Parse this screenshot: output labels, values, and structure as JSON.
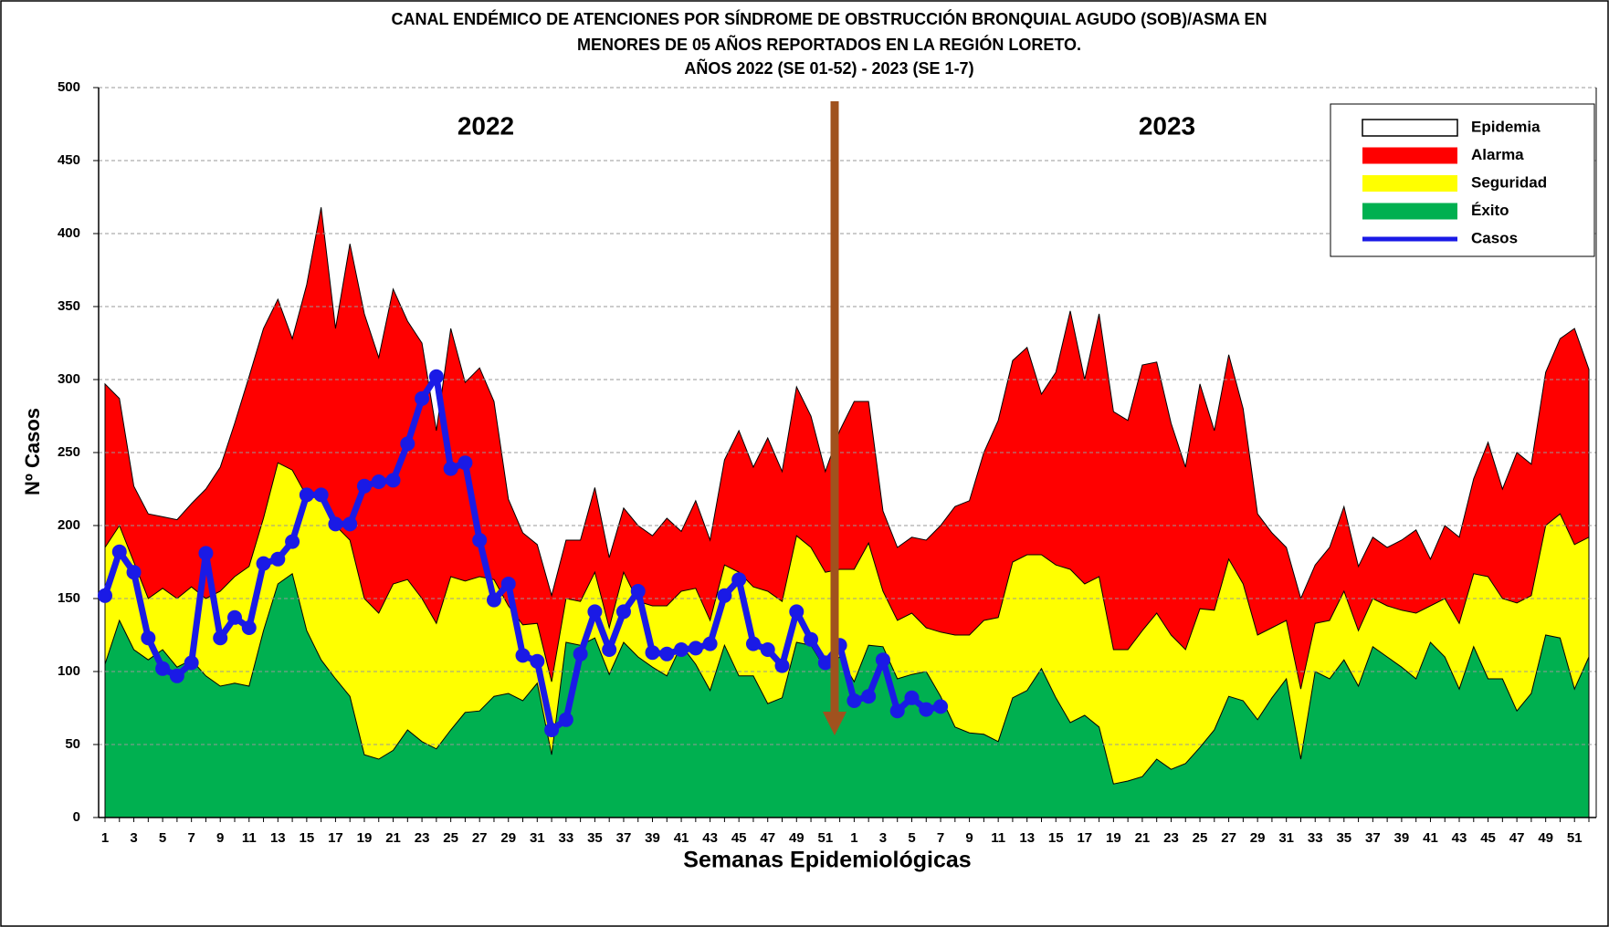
{
  "chart_data": {
    "type": "area",
    "title": [
      "CANAL ENDÉMICO DE ATENCIONES POR SÍNDROME DE OBSTRUCCIÓN BRONQUIAL AGUDO (SOB)/ASMA EN",
      "MENORES DE 05 AÑOS REPORTADOS EN LA REGIÓN LORETO.",
      "AÑOS 2022  (SE 01-52) - 2023 (SE   1-7)"
    ],
    "y_label": "Nº Casos",
    "x_label": "Semanas Epidemiológicas",
    "annotations": [
      "2022",
      "2023"
    ],
    "categories": [
      "1",
      null,
      "3",
      null,
      "5",
      null,
      "7",
      null,
      "9",
      null,
      "11",
      null,
      "13",
      null,
      "15",
      null,
      "17",
      null,
      "19",
      null,
      "21",
      null,
      "23",
      null,
      "25",
      null,
      "27",
      null,
      "29",
      null,
      "31",
      null,
      "33",
      null,
      "35",
      null,
      "37",
      null,
      "39",
      null,
      "41",
      null,
      "43",
      null,
      "45",
      null,
      "47",
      null,
      "49",
      null,
      "51",
      null,
      "1",
      null,
      "3",
      null,
      "5",
      null,
      "7",
      null,
      "9",
      null,
      "11",
      null,
      "13",
      null,
      "15",
      null,
      "17",
      null,
      "19",
      null,
      "21",
      null,
      "23",
      null,
      "25",
      null,
      "27",
      null,
      "29",
      null,
      "31",
      null,
      "33",
      null,
      "35",
      null,
      "37",
      null,
      "39",
      null,
      "41",
      null,
      "43",
      null,
      "45",
      null,
      "47",
      null,
      "49",
      null,
      "51",
      null
    ],
    "ylim": [
      0,
      500
    ],
    "yticks": [
      0,
      50,
      100,
      150,
      200,
      250,
      300,
      350,
      400,
      450,
      500
    ],
    "grid": true,
    "legend": "top-right",
    "series": [
      {
        "name": "Epidemia",
        "color": "#ffffff"
      },
      {
        "name": "Alarma",
        "color": "#ff0000",
        "type": "area",
        "values": [
          297,
          287,
          227,
          208,
          206,
          204,
          215,
          225,
          240,
          270,
          302,
          335,
          355,
          328,
          365,
          418,
          335,
          393,
          345,
          315,
          362,
          340,
          325,
          265,
          335,
          298,
          308,
          285,
          218,
          195,
          187,
          152,
          190,
          190,
          226,
          178,
          212,
          200,
          193,
          205,
          196,
          217,
          190,
          245,
          265,
          240,
          260,
          237,
          295,
          275,
          237,
          265,
          285,
          285,
          210,
          185,
          192,
          190,
          200,
          213,
          217,
          250,
          272,
          313,
          322,
          290,
          305,
          347,
          300,
          345,
          278,
          272,
          310,
          312,
          270,
          240,
          297,
          265,
          317,
          280,
          208,
          195,
          185,
          150,
          173,
          185,
          213,
          172,
          192,
          185,
          190,
          197,
          177,
          200,
          192,
          232,
          257,
          225,
          250,
          242,
          305,
          328,
          335,
          307
        ]
      },
      {
        "name": "Seguridad",
        "color": "#ffff00",
        "type": "area",
        "values": [
          185,
          200,
          175,
          150,
          157,
          150,
          158,
          150,
          155,
          165,
          172,
          205,
          243,
          238,
          220,
          225,
          200,
          190,
          150,
          140,
          160,
          163,
          150,
          133,
          165,
          162,
          165,
          163,
          145,
          132,
          133,
          93,
          150,
          148,
          168,
          130,
          168,
          148,
          145,
          145,
          155,
          157,
          135,
          173,
          168,
          158,
          155,
          148,
          193,
          185,
          168,
          170,
          170,
          188,
          155,
          135,
          140,
          130,
          127,
          125,
          125,
          135,
          137,
          175,
          180,
          180,
          173,
          170,
          160,
          165,
          115,
          115,
          128,
          140,
          125,
          115,
          143,
          142,
          177,
          160,
          125,
          130,
          135,
          88,
          133,
          135,
          155,
          128,
          150,
          145,
          142,
          140,
          145,
          150,
          133,
          167,
          165,
          150,
          147,
          152,
          200,
          208,
          187,
          192
        ]
      },
      {
        "name": "Éxito",
        "color": "#00b050",
        "type": "area",
        "values": [
          105,
          135,
          115,
          108,
          115,
          103,
          108,
          97,
          90,
          92,
          90,
          128,
          160,
          167,
          128,
          108,
          95,
          83,
          43,
          40,
          46,
          60,
          52,
          47,
          60,
          72,
          73,
          83,
          85,
          80,
          92,
          43,
          120,
          118,
          123,
          98,
          120,
          110,
          103,
          97,
          118,
          105,
          87,
          118,
          97,
          97,
          78,
          82,
          120,
          118,
          102,
          110,
          93,
          118,
          117,
          95,
          98,
          100,
          83,
          62,
          58,
          57,
          52,
          82,
          87,
          102,
          82,
          65,
          70,
          62,
          23,
          25,
          28,
          40,
          33,
          37,
          48,
          60,
          83,
          80,
          67,
          82,
          95,
          40,
          100,
          95,
          108,
          90,
          117,
          110,
          103,
          95,
          120,
          110,
          88,
          117,
          95,
          95,
          73,
          85,
          125,
          123,
          88,
          110
        ]
      },
      {
        "name": "Casos",
        "color": "#1a1ae6",
        "type": "line",
        "values": [
          152,
          182,
          168,
          123,
          102,
          97,
          106,
          181,
          123,
          137,
          130,
          174,
          177,
          189,
          221,
          221,
          201,
          201,
          227,
          230,
          231,
          256,
          287,
          302,
          239,
          243,
          190,
          149,
          160,
          111,
          107,
          60,
          67,
          112,
          141,
          115,
          141,
          155,
          113,
          112,
          115,
          116,
          119,
          152,
          163,
          119,
          115,
          104,
          141,
          122,
          106,
          118,
          80,
          83,
          108,
          73,
          82,
          74,
          76,
          null,
          null,
          null,
          null,
          null,
          null,
          null,
          null,
          null,
          null,
          null,
          null,
          null,
          null,
          null,
          null,
          null,
          null,
          null,
          null,
          null,
          null,
          null,
          null,
          null,
          null,
          null,
          null,
          null,
          null,
          null,
          null,
          null,
          null,
          null,
          null,
          null,
          null,
          null,
          null,
          null,
          null,
          null,
          null,
          null
        ]
      }
    ]
  }
}
